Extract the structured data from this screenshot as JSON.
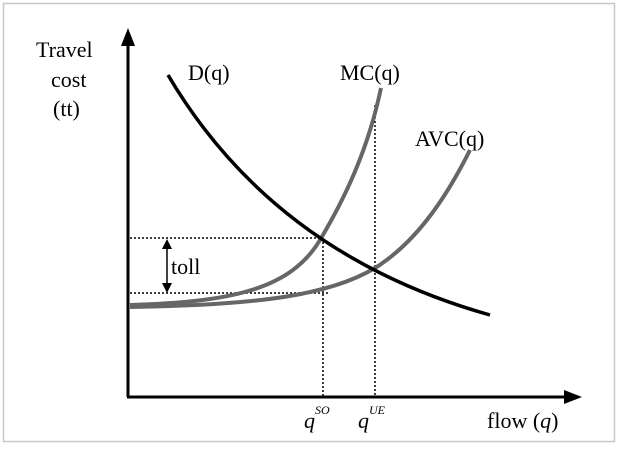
{
  "y_label": [
    "Travel",
    "cost",
    "(tt)"
  ],
  "curves": {
    "demand": "D(q)",
    "marginal_cost": "MC(q)",
    "average_cost": "AVC(q)"
  },
  "toll": "toll",
  "q_so": {
    "base": "q",
    "sup": "SO"
  },
  "q_ue": {
    "base": "q",
    "sup": "UE"
  },
  "x_label": {
    "text": "flow (",
    "var": "q",
    "close": ")"
  }
}
